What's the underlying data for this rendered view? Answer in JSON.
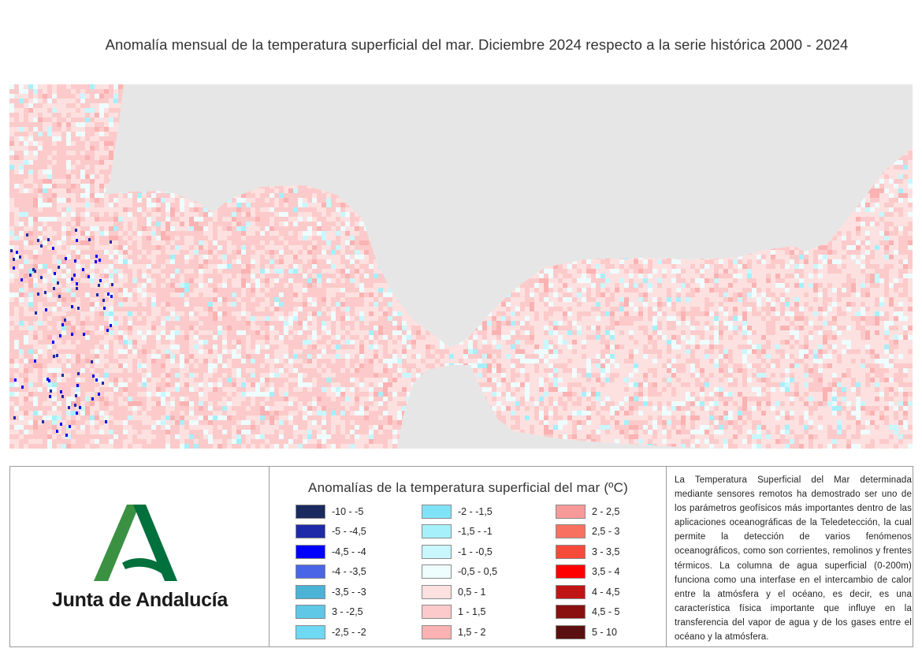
{
  "title": "Anomalía mensual de la temperatura superficial del mar. Diciembre 2024 respecto a la serie histórica 2000 - 2024",
  "map": {
    "land_color": "#e6e6e6",
    "dominant_anomaly_class": "0,5 - 1",
    "secondary_anomaly_class": "1 - 1,5"
  },
  "logo": {
    "text": "Junta de Andalucía",
    "icon": "junta-de-andalucia-a-icon",
    "colors": {
      "light_green": "#3a9142",
      "dark_green": "#00703c"
    }
  },
  "legend": {
    "title": "Anomalías de la temperatura superficial del mar (ºC)",
    "items": [
      {
        "label": "-10 - -5",
        "color": "#1b2a5e"
      },
      {
        "label": "-5 - -4,5",
        "color": "#1f2aa8"
      },
      {
        "label": "-4,5 - -4",
        "color": "#0000ff"
      },
      {
        "label": "-4 - -3,5",
        "color": "#4a65e6"
      },
      {
        "label": "-3,5 - -3",
        "color": "#4bb3d6"
      },
      {
        "label": "3 - -2,5",
        "color": "#5ec8e6"
      },
      {
        "label": "-2,5 - -2",
        "color": "#6fd8f2"
      },
      {
        "label": "-2 - -1,5",
        "color": "#7fe3f7"
      },
      {
        "label": "-1,5 - -1",
        "color": "#a6f0fb"
      },
      {
        "label": "-1 - -0,5",
        "color": "#c8f7fd"
      },
      {
        "label": "-0,5 - 0,5",
        "color": "#eefdfe"
      },
      {
        "label": "0,5 - 1",
        "color": "#fde1e1"
      },
      {
        "label": "1 - 1,5",
        "color": "#fccaca"
      },
      {
        "label": "1,5 - 2",
        "color": "#fab2b2"
      },
      {
        "label": "2 - 2,5",
        "color": "#f89999"
      },
      {
        "label": "2,5 - 3",
        "color": "#f77060"
      },
      {
        "label": "3 - 3,5",
        "color": "#f64a3a"
      },
      {
        "label": "3,5 - 4",
        "color": "#ff0000"
      },
      {
        "label": "4 - 4,5",
        "color": "#c01515"
      },
      {
        "label": "4,5 - 5",
        "color": "#8a1010"
      },
      {
        "label": "5 - 10",
        "color": "#5a1010"
      }
    ]
  },
  "description": "La Temperatura Superficial del Mar determinada mediante sensores remotos ha demostrado ser uno de los parámetros geofísicos más importantes dentro de las aplicaciones oceanográficas de la Teledetección, la cual permite la detección de varios fenómenos oceanográficos, como son corrientes, remolinos y frentes térmicos. La columna de agua superficial (0-200m) funciona como una interfase en el intercambio de calor entre la atmósfera y el océano, es decir, es una característica física importante que influye en la transferencia del vapor de agua y de los gases entre el océano y la atmósfera."
}
